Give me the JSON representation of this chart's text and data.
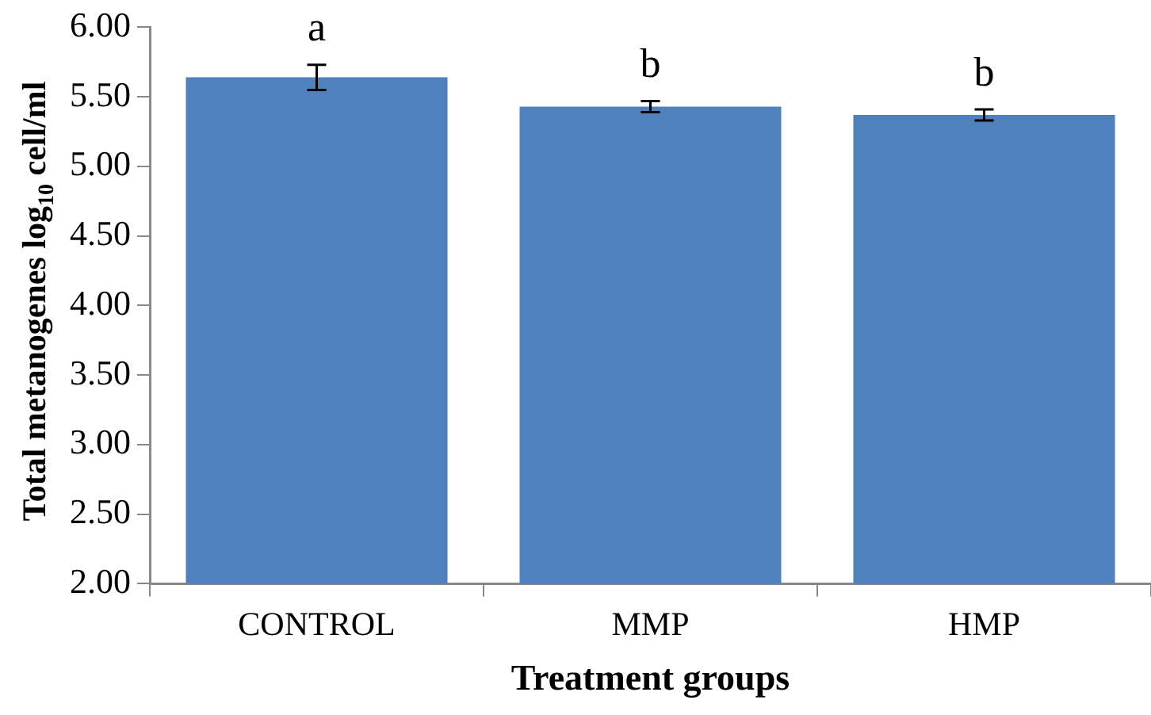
{
  "chart_data": {
    "type": "bar",
    "xlabel": "Treatment groups",
    "ylabel": "Total metanogenes log$_{10}$ cell/ml",
    "categories": [
      "CONTROL",
      "MMP",
      "HMP"
    ],
    "values": [
      5.64,
      5.43,
      5.37
    ],
    "errors": [
      0.09,
      0.04,
      0.04
    ],
    "color": "#4f81bd",
    "ylim": [
      2,
      6
    ],
    "yticks": [
      {
        "value": 2,
        "label": "2.00"
      },
      {
        "value": 2.5,
        "label": "2.50"
      },
      {
        "value": 3,
        "label": "3.00"
      },
      {
        "value": 3.5,
        "label": "3.50"
      },
      {
        "value": 4,
        "label": "4.00"
      },
      {
        "value": 4.5,
        "label": "4.50"
      },
      {
        "value": 5,
        "label": "5.00"
      },
      {
        "value": 5.5,
        "label": "5.50"
      },
      {
        "value": 6,
        "label": "6.00"
      }
    ],
    "grid": false,
    "legend": false,
    "annotations": [
      "a",
      "b",
      "b"
    ]
  }
}
